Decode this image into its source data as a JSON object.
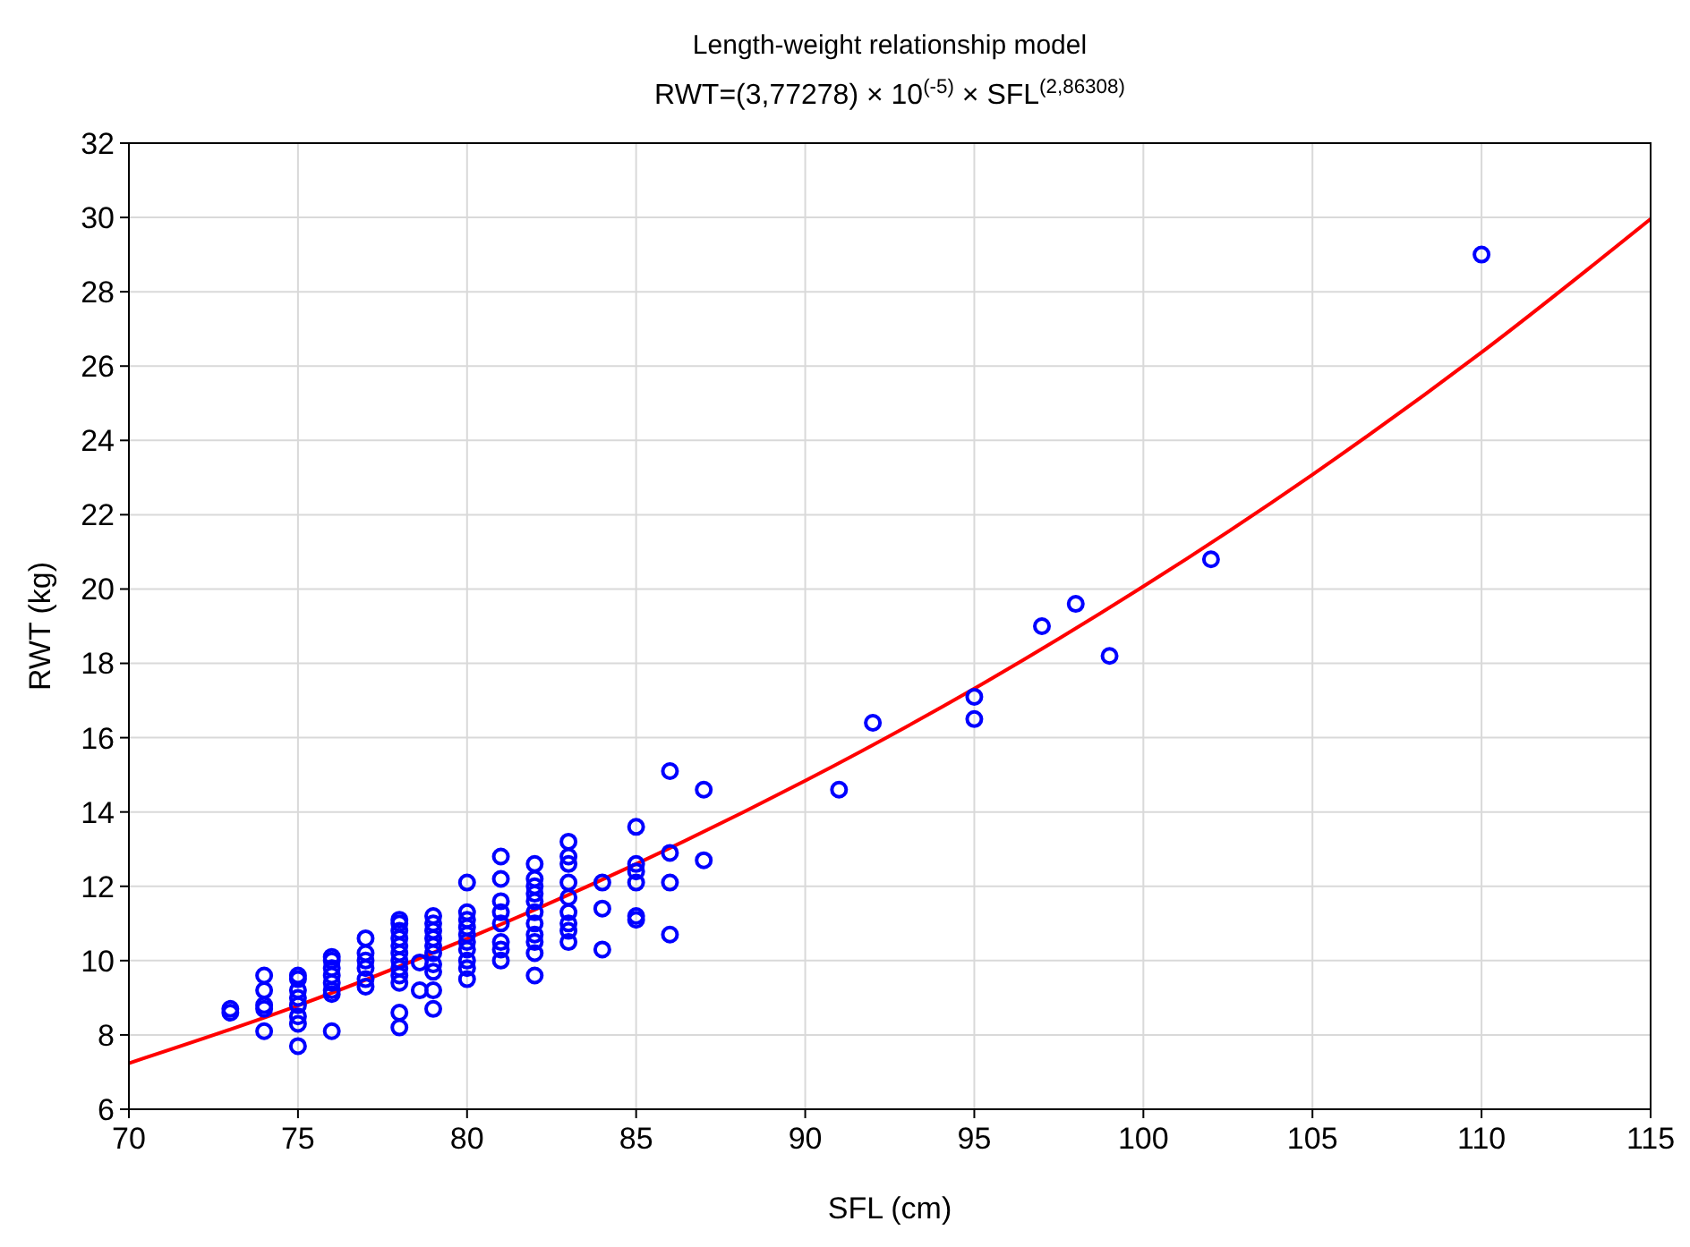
{
  "chart_data": {
    "type": "scatter",
    "title": "Length-weight relationship model",
    "subtitle": "RWT=(3,77278) × 10$^{(-5)}$ × SFL$^{(2,86308)}$",
    "xlabel": "SFL (cm)",
    "ylabel": "RWT (kg)",
    "xlim": [
      70,
      115
    ],
    "xticks": [
      70,
      75,
      80,
      85,
      90,
      95,
      100,
      105,
      110,
      115
    ],
    "ylim": [
      6,
      32
    ],
    "yticks": [
      6,
      8,
      10,
      12,
      14,
      16,
      18,
      20,
      22,
      24,
      26,
      28,
      30,
      32
    ],
    "grid": true,
    "series": [
      {
        "marker": "circle",
        "color": "#0000ff",
        "x": [
          73,
          73,
          74,
          74,
          74,
          74,
          74,
          75,
          75,
          75,
          75,
          75,
          75,
          75,
          75,
          76,
          76,
          76,
          76,
          76,
          76,
          76,
          76,
          77,
          77,
          77,
          77,
          77,
          77,
          78,
          78,
          78,
          78,
          78,
          78,
          78,
          78,
          78,
          78,
          78,
          78,
          78.6,
          78.6,
          79,
          79,
          79,
          79,
          79,
          79,
          79,
          79,
          79,
          79,
          80,
          80,
          80,
          80,
          80,
          80,
          80,
          80,
          80,
          80,
          81,
          81,
          81,
          81,
          81,
          81,
          81,
          81,
          82,
          82,
          82,
          82,
          82,
          82,
          82,
          82,
          82,
          82,
          82,
          83,
          83,
          83,
          83,
          83,
          83,
          83,
          83,
          83,
          84,
          84,
          84,
          85,
          85,
          85,
          85,
          85,
          85,
          86,
          86,
          86,
          86,
          87,
          87,
          91,
          92,
          95,
          95,
          97,
          98,
          99,
          102,
          110
        ],
        "values": [
          8.7,
          8.6,
          9.6,
          9.2,
          8.8,
          8.7,
          8.1,
          9.6,
          9.5,
          9.2,
          9.0,
          8.8,
          8.5,
          8.3,
          7.7,
          10.1,
          10.0,
          9.8,
          9.6,
          9.4,
          9.2,
          9.1,
          8.1,
          10.6,
          10.2,
          10.0,
          9.8,
          9.5,
          9.3,
          11.1,
          11.0,
          10.8,
          10.6,
          10.4,
          10.2,
          10.0,
          9.8,
          9.6,
          9.4,
          8.6,
          8.2,
          9.95,
          9.2,
          11.2,
          11.0,
          10.8,
          10.6,
          10.4,
          10.2,
          9.9,
          9.7,
          9.2,
          8.7,
          12.1,
          11.3,
          11.1,
          10.9,
          10.7,
          10.5,
          10.3,
          10.0,
          9.8,
          9.5,
          12.8,
          12.2,
          11.6,
          11.3,
          11.0,
          10.5,
          10.3,
          10.0,
          12.6,
          12.2,
          12.0,
          11.8,
          11.6,
          11.3,
          11.0,
          10.7,
          10.5,
          10.2,
          9.6,
          13.2,
          12.8,
          12.6,
          12.1,
          11.7,
          11.3,
          11.0,
          10.8,
          10.5,
          12.1,
          11.4,
          10.3,
          13.6,
          12.6,
          12.4,
          12.1,
          11.2,
          11.1,
          15.1,
          12.9,
          12.1,
          10.7,
          14.6,
          12.7,
          14.6,
          16.4,
          17.1,
          16.5,
          19.0,
          19.6,
          18.2,
          20.8,
          29.0
        ]
      },
      {
        "type": "line",
        "marker": "none",
        "color": "#ff0000",
        "x": [
          70,
          75,
          80,
          85,
          90,
          95,
          100,
          105,
          110,
          115
        ],
        "values": [
          7.24,
          8.79,
          10.59,
          12.6,
          14.84,
          17.32,
          20.07,
          23.08,
          26.37,
          29.96
        ]
      }
    ]
  }
}
